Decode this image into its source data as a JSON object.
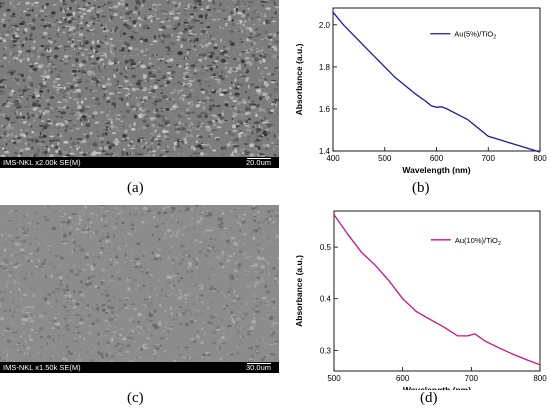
{
  "panels": {
    "a": {
      "caption": "(a)",
      "info": "IMS-NKL x2.00k SE(M)",
      "scale": "20.0um"
    },
    "b": {
      "caption": "(b)"
    },
    "c": {
      "caption": "(c)",
      "info": "IMS-NKL x1.50k SE(M)",
      "scale": "30.0um"
    },
    "d": {
      "caption": "(d)"
    }
  },
  "chart_data": [
    {
      "type": "line",
      "xlabel": "Wavelength (nm)",
      "ylabel": "Absorbance (a.u.)",
      "xlim": [
        400,
        800
      ],
      "ylim": [
        1.4,
        2.08
      ],
      "xticks": [
        400,
        500,
        600,
        700,
        800
      ],
      "yticks": [
        1.4,
        1.6,
        1.8,
        2.0
      ],
      "ytick_labels": [
        "1.4",
        "1.6",
        "1.8",
        "2.0"
      ],
      "legend_position": "top-right",
      "color": "#1a1aa8",
      "series": [
        {
          "name": "Au(5%)/TiO2",
          "x": [
            400,
            420,
            440,
            460,
            480,
            500,
            520,
            540,
            560,
            580,
            590,
            600,
            610,
            620,
            640,
            660,
            680,
            700,
            720,
            740,
            760,
            780,
            800
          ],
          "y": [
            2.06,
            2.0,
            1.95,
            1.9,
            1.85,
            1.8,
            1.75,
            1.71,
            1.67,
            1.635,
            1.615,
            1.608,
            1.61,
            1.6,
            1.575,
            1.55,
            1.51,
            1.47,
            1.455,
            1.44,
            1.425,
            1.41,
            1.395
          ]
        }
      ]
    },
    {
      "type": "line",
      "xlabel": "Wavelength (nm)",
      "ylabel": "Absorbance (a.u.)",
      "xlim": [
        500,
        800
      ],
      "ylim": [
        0.26,
        0.57
      ],
      "xticks": [
        500,
        600,
        700,
        800
      ],
      "yticks": [
        0.3,
        0.4,
        0.5
      ],
      "ytick_labels": [
        "0.3",
        "0.4",
        "0.5"
      ],
      "legend_position": "top-right",
      "color": "#d4107a",
      "series": [
        {
          "name": "Au(10%)/TiO2",
          "x": [
            500,
            520,
            540,
            560,
            580,
            600,
            620,
            640,
            660,
            680,
            695,
            705,
            720,
            740,
            760,
            780,
            800
          ],
          "y": [
            0.563,
            0.525,
            0.49,
            0.465,
            0.435,
            0.4,
            0.375,
            0.36,
            0.345,
            0.328,
            0.328,
            0.332,
            0.318,
            0.305,
            0.293,
            0.282,
            0.272
          ]
        }
      ]
    }
  ]
}
